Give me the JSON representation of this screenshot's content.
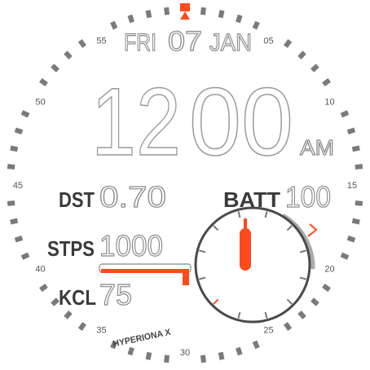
{
  "date": {
    "weekday": "FRI",
    "day": "07",
    "month": "JAN"
  },
  "time": {
    "hours": "12",
    "minutes": "00",
    "period": "AM"
  },
  "stats": [
    {
      "label": "DST",
      "value": "0.70"
    },
    {
      "label": "BATT",
      "value": "100"
    },
    {
      "label": "STPS",
      "value": "1000"
    },
    {
      "label": "KCL",
      "value": "75"
    }
  ],
  "brand": "HYPERIONA X",
  "dial_labels": [
    "05",
    "10",
    "15",
    "20",
    "25",
    "30",
    "35",
    "40",
    "45",
    "50",
    "55"
  ]
}
